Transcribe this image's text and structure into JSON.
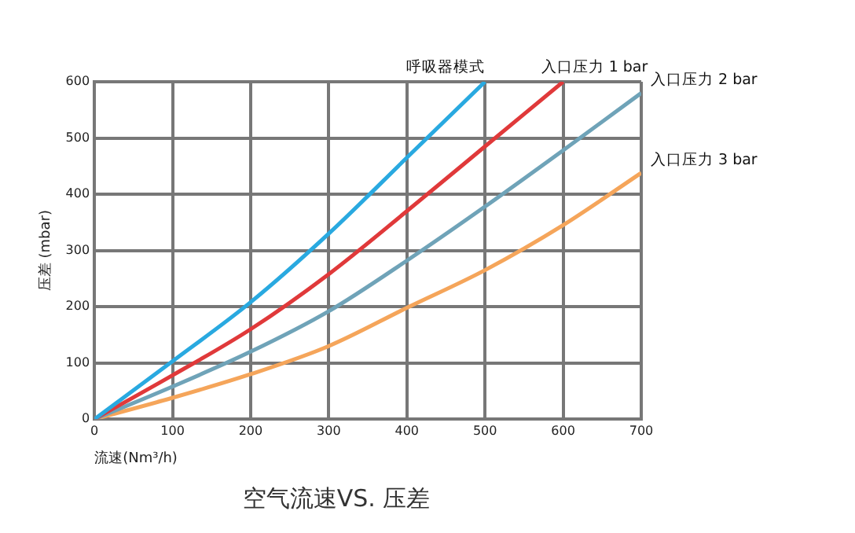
{
  "chart_data": {
    "type": "line",
    "title": "空气流速VS. 压差",
    "xlabel": "流速(Nm³/h)",
    "ylabel": "压差 (mbar)",
    "x": [
      0,
      100,
      200,
      300,
      400,
      500,
      600,
      700
    ],
    "series": [
      {
        "name": "呼吸器模式",
        "color": "#29a9e0",
        "values": [
          0,
          103,
          208,
          330,
          465,
          600,
          null,
          null
        ]
      },
      {
        "name": "入口压力 1 bar",
        "color": "#e0393a",
        "values": [
          0,
          78,
          160,
          258,
          370,
          485,
          600,
          null
        ]
      },
      {
        "name": "入口压力 2 bar",
        "color": "#6fa3b8",
        "values": [
          0,
          58,
          120,
          192,
          282,
          378,
          478,
          580
        ]
      },
      {
        "name": "入口压力 3 bar",
        "color": "#f5a55a",
        "values": [
          0,
          38,
          80,
          130,
          198,
          265,
          345,
          438
        ]
      }
    ],
    "xlim": [
      0,
      700
    ],
    "xticks": [
      0,
      100,
      200,
      300,
      400,
      500,
      600,
      700
    ],
    "ylim": [
      0,
      600
    ],
    "yticks": [
      0,
      100,
      200,
      300,
      400,
      500,
      600
    ],
    "grid": true,
    "legend": false,
    "marker": "none",
    "line_style": "solid"
  }
}
